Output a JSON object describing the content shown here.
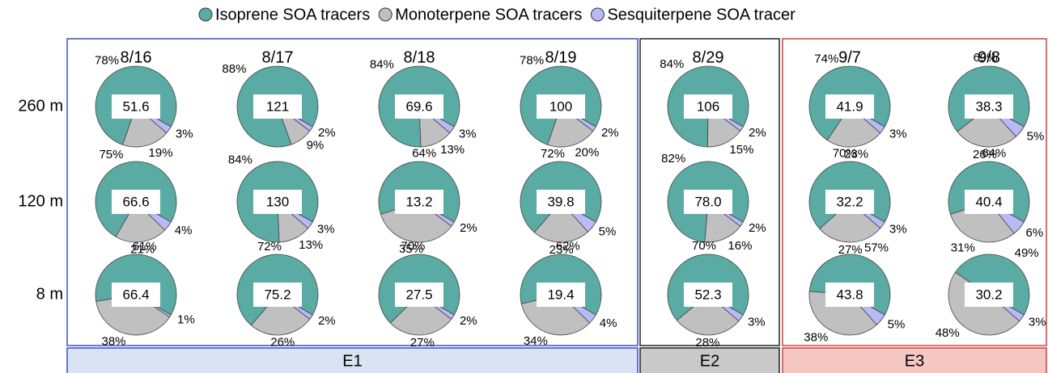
{
  "chart_data": {
    "type": "pie-grid",
    "series": [
      {
        "name": "Isoprene SOA tracers",
        "color": "#5aaba3"
      },
      {
        "name": "Monoterpene SOA tracers",
        "color": "#c0c0c0"
      },
      {
        "name": "Sesquiterpene SOA tracer",
        "color": "#b9b9f6"
      }
    ],
    "rows": [
      "260 m",
      "120 m",
      "8 m"
    ],
    "groups": [
      {
        "label": "E1",
        "columns": [
          {
            "date": "8/16",
            "pies": [
              {
                "total": 51.6,
                "values": [
                  78,
                  19,
                  3
                ],
                "value_labels": [
                  "78%",
                  "19%",
                  "3%"
                ]
              },
              {
                "total": 66.6,
                "values": [
                  75,
                  21,
                  4
                ],
                "value_labels": [
                  "75%",
                  "21%",
                  "4%"
                ]
              },
              {
                "total": 66.4,
                "values": [
                  61,
                  38,
                  1
                ],
                "value_labels": [
                  "61%",
                  "38%",
                  "1%"
                ]
              }
            ]
          },
          {
            "date": "8/17",
            "pies": [
              {
                "total": 121,
                "values": [
                  88,
                  9,
                  2
                ],
                "value_labels": [
                  "88%",
                  "9%",
                  "2%"
                ]
              },
              {
                "total": 130,
                "values": [
                  84,
                  13,
                  3
                ],
                "value_labels": [
                  "84%",
                  "13%",
                  "3%"
                ]
              },
              {
                "total": 75.2,
                "values": [
                  72,
                  26,
                  2
                ],
                "value_labels": [
                  "72%",
                  "26%",
                  "2%"
                ]
              }
            ]
          },
          {
            "date": "8/18",
            "pies": [
              {
                "total": 69.6,
                "values": [
                  84,
                  13,
                  3
                ],
                "value_labels": [
                  "84%",
                  "13%",
                  "3%"
                ]
              },
              {
                "total": 13.2,
                "values": [
                  64,
                  35,
                  2
                ],
                "value_labels": [
                  "64%",
                  "35%",
                  "2%"
                ]
              },
              {
                "total": 27.5,
                "values": [
                  70,
                  27,
                  2
                ],
                "value_labels": [
                  "70%",
                  "27%",
                  "2%"
                ]
              }
            ]
          },
          {
            "date": "8/19",
            "pies": [
              {
                "total": 100,
                "values": [
                  78,
                  20,
                  2
                ],
                "value_labels": [
                  "78%",
                  "20%",
                  "2%"
                ]
              },
              {
                "total": 39.8,
                "values": [
                  72,
                  23,
                  5
                ],
                "value_labels": [
                  "72%",
                  "23%",
                  "5%"
                ]
              },
              {
                "total": 19.4,
                "values": [
                  62,
                  34,
                  4
                ],
                "value_labels": [
                  "62%",
                  "34%",
                  "4%"
                ]
              }
            ]
          }
        ]
      },
      {
        "label": "E2",
        "columns": [
          {
            "date": "8/29",
            "pies": [
              {
                "total": 106,
                "values": [
                  84,
                  15,
                  2
                ],
                "value_labels": [
                  "84%",
                  "15%",
                  "2%"
                ]
              },
              {
                "total": {
                  "value": 78,
                  "label": "78.0"
                },
                "values": [
                  82,
                  16,
                  2
                ],
                "value_labels": [
                  "82%",
                  "16%",
                  "2%"
                ]
              },
              {
                "total": 52.3,
                "values": [
                  70,
                  28,
                  3
                ],
                "value_labels": [
                  "70%",
                  "28%",
                  "3%"
                ]
              }
            ]
          }
        ]
      },
      {
        "label": "E3",
        "columns": [
          {
            "date": "9/7",
            "pies": [
              {
                "total": 41.9,
                "values": [
                  74,
                  23,
                  3
                ],
                "value_labels": [
                  "74%",
                  "23%",
                  "3%"
                ]
              },
              {
                "total": 32.2,
                "values": [
                  70,
                  27,
                  3
                ],
                "value_labels": [
                  "70%",
                  "27%",
                  "3%"
                ]
              },
              {
                "total": 43.8,
                "values": [
                  57,
                  38,
                  5
                ],
                "value_labels": [
                  "57%",
                  "38%",
                  "5%"
                ]
              }
            ]
          },
          {
            "date": "9/8",
            "pies": [
              {
                "total": 38.3,
                "values": [
                  69,
                  26,
                  5
                ],
                "value_labels": [
                  "69%",
                  "26%",
                  "5%"
                ]
              },
              {
                "total": 40.4,
                "values": [
                  64,
                  31,
                  6
                ],
                "value_labels": [
                  "64%",
                  "31%",
                  "6%"
                ]
              },
              {
                "total": 30.2,
                "values": [
                  49,
                  48,
                  3
                ],
                "value_labels": [
                  "49%",
                  "48%",
                  "3%"
                ]
              }
            ]
          }
        ]
      }
    ]
  }
}
